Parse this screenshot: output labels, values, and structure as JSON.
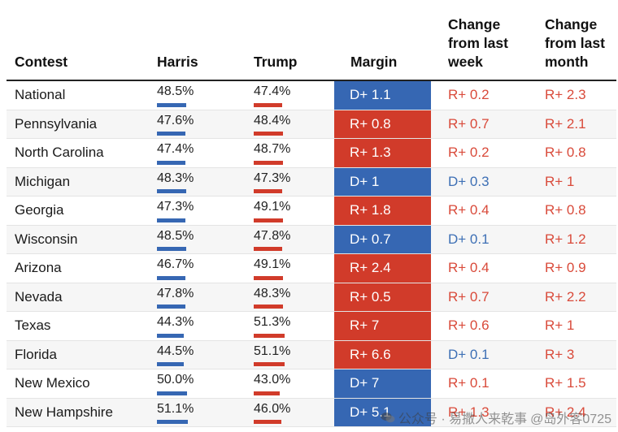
{
  "colors": {
    "dem": "#3667b3",
    "rep": "#d13b2a",
    "dem_text": "#3d6fb5",
    "rep_text": "#d94a3a"
  },
  "chart_data": {
    "type": "table",
    "columns": [
      "Contest",
      "Harris",
      "Trump",
      "Margin",
      "Change from last week",
      "Change from last month"
    ],
    "rows": [
      {
        "contest": "National",
        "harris": "48.5%",
        "trump": "47.4%",
        "harris_v": 48.5,
        "trump_v": 47.4,
        "margin": "D+ 1.1",
        "margin_party": "D",
        "week": "R+ 0.2",
        "week_party": "R",
        "month": "R+ 2.3",
        "month_party": "R"
      },
      {
        "contest": "Pennsylvania",
        "harris": "47.6%",
        "trump": "48.4%",
        "harris_v": 47.6,
        "trump_v": 48.4,
        "margin": "R+ 0.8",
        "margin_party": "R",
        "week": "R+ 0.7",
        "week_party": "R",
        "month": "R+ 2.1",
        "month_party": "R"
      },
      {
        "contest": "North Carolina",
        "harris": "47.4%",
        "trump": "48.7%",
        "harris_v": 47.4,
        "trump_v": 48.7,
        "margin": "R+ 1.3",
        "margin_party": "R",
        "week": "R+ 0.2",
        "week_party": "R",
        "month": "R+ 0.8",
        "month_party": "R"
      },
      {
        "contest": "Michigan",
        "harris": "48.3%",
        "trump": "47.3%",
        "harris_v": 48.3,
        "trump_v": 47.3,
        "margin": "D+ 1",
        "margin_party": "D",
        "week": "D+ 0.3",
        "week_party": "D",
        "month": "R+ 1",
        "month_party": "R"
      },
      {
        "contest": "Georgia",
        "harris": "47.3%",
        "trump": "49.1%",
        "harris_v": 47.3,
        "trump_v": 49.1,
        "margin": "R+ 1.8",
        "margin_party": "R",
        "week": "R+ 0.4",
        "week_party": "R",
        "month": "R+ 0.8",
        "month_party": "R"
      },
      {
        "contest": "Wisconsin",
        "harris": "48.5%",
        "trump": "47.8%",
        "harris_v": 48.5,
        "trump_v": 47.8,
        "margin": "D+ 0.7",
        "margin_party": "D",
        "week": "D+ 0.1",
        "week_party": "D",
        "month": "R+ 1.2",
        "month_party": "R"
      },
      {
        "contest": "Arizona",
        "harris": "46.7%",
        "trump": "49.1%",
        "harris_v": 46.7,
        "trump_v": 49.1,
        "margin": "R+ 2.4",
        "margin_party": "R",
        "week": "R+ 0.4",
        "week_party": "R",
        "month": "R+ 0.9",
        "month_party": "R"
      },
      {
        "contest": "Nevada",
        "harris": "47.8%",
        "trump": "48.3%",
        "harris_v": 47.8,
        "trump_v": 48.3,
        "margin": "R+ 0.5",
        "margin_party": "R",
        "week": "R+ 0.7",
        "week_party": "R",
        "month": "R+ 2.2",
        "month_party": "R"
      },
      {
        "contest": "Texas",
        "harris": "44.3%",
        "trump": "51.3%",
        "harris_v": 44.3,
        "trump_v": 51.3,
        "margin": "R+ 7",
        "margin_party": "R",
        "week": "R+ 0.6",
        "week_party": "R",
        "month": "R+ 1",
        "month_party": "R"
      },
      {
        "contest": "Florida",
        "harris": "44.5%",
        "trump": "51.1%",
        "harris_v": 44.5,
        "trump_v": 51.1,
        "margin": "R+ 6.6",
        "margin_party": "R",
        "week": "D+ 0.1",
        "week_party": "D",
        "month": "R+ 3",
        "month_party": "R"
      },
      {
        "contest": "New Mexico",
        "harris": "50.0%",
        "trump": "43.0%",
        "harris_v": 50.0,
        "trump_v": 43.0,
        "margin": "D+ 7",
        "margin_party": "D",
        "week": "R+ 0.1",
        "week_party": "R",
        "month": "R+ 1.5",
        "month_party": "R"
      },
      {
        "contest": "New Hampshire",
        "harris": "51.1%",
        "trump": "46.0%",
        "harris_v": 51.1,
        "trump_v": 46.0,
        "margin": "D+ 5.1",
        "margin_party": "D",
        "week": "R+ 1.3",
        "week_party": "R",
        "month": "R+ 2.4",
        "month_party": "R"
      }
    ]
  },
  "header": {
    "contest": "Contest",
    "harris": "Harris",
    "trump": "Trump",
    "margin": "Margin",
    "week_lines": [
      "Change",
      "from last",
      "week"
    ],
    "month_lines": [
      "Change",
      "from last",
      "month"
    ]
  },
  "watermark": {
    "text": "公众号 · 易撒人来乾事",
    "handle": "@岛外客0725",
    "icon": "wechat-icon"
  }
}
